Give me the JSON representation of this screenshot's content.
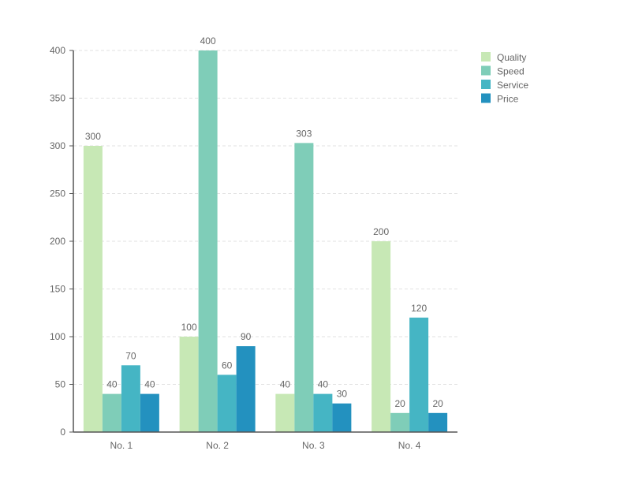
{
  "chart_data": {
    "type": "bar",
    "categories": [
      "No. 1",
      "No. 2",
      "No. 3",
      "No. 4"
    ],
    "series": [
      {
        "name": "Quality",
        "values": [
          300,
          100,
          40,
          200
        ],
        "color": "#c7e8b5"
      },
      {
        "name": "Speed",
        "values": [
          40,
          400,
          303,
          20
        ],
        "color": "#7fcdb8"
      },
      {
        "name": "Service",
        "values": [
          70,
          60,
          40,
          120
        ],
        "color": "#45b5c4"
      },
      {
        "name": "Price",
        "values": [
          40,
          90,
          30,
          20
        ],
        "color": "#2391bf"
      }
    ],
    "ylim": [
      0,
      400
    ],
    "yticks": [
      0,
      50,
      100,
      150,
      200,
      250,
      300,
      350,
      400
    ],
    "grid": true,
    "legend": "top-right",
    "data_labels": true
  }
}
